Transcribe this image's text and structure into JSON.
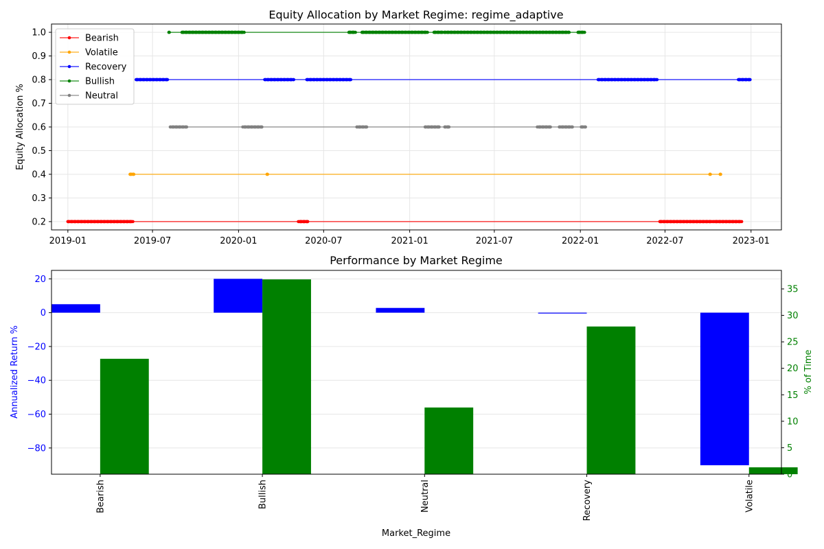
{
  "chart_data": [
    {
      "type": "line",
      "title": "Equity Allocation by Market Regime: regime_adaptive",
      "xlabel": "",
      "ylabel": "Equity Allocation %",
      "ylim": [
        0.165,
        1.035
      ],
      "yticks": [
        0.2,
        0.3,
        0.4,
        0.5,
        0.6,
        0.7,
        0.8,
        0.9,
        1.0
      ],
      "ytick_labels": [
        "0.2",
        "0.3",
        "0.4",
        "0.5",
        "0.6",
        "0.7",
        "0.8",
        "0.9",
        "1.0"
      ],
      "xlim": [
        "2018-11-27",
        "2023-03-07"
      ],
      "xticks": [
        "2019-01-01",
        "2019-07-01",
        "2020-01-01",
        "2020-07-01",
        "2021-01-01",
        "2021-07-01",
        "2022-01-01",
        "2022-07-01",
        "2023-01-01"
      ],
      "xtick_labels": [
        "2019-01",
        "2019-07",
        "2020-01",
        "2020-07",
        "2021-01",
        "2021-07",
        "2022-01",
        "2022-07",
        "2023-01"
      ],
      "grid": true,
      "legend_position": "upper-left",
      "series": [
        {
          "name": "Bearish",
          "color": "#ff0000",
          "allocation": 0.2,
          "segments": [
            [
              "2019-01-01",
              "2019-05-20"
            ],
            [
              "2020-05-08",
              "2020-05-28"
            ],
            [
              "2022-06-20",
              "2022-10-10"
            ],
            [
              "2022-10-13",
              "2022-12-12"
            ]
          ]
        },
        {
          "name": "Volatile",
          "color": "#ffa500",
          "allocation": 0.4,
          "segments": [
            [
              "2019-05-14",
              "2019-05-22"
            ],
            [
              "2020-03-02",
              "2020-03-02"
            ],
            [
              "2022-10-05",
              "2022-10-05"
            ],
            [
              "2022-10-27",
              "2022-10-27"
            ]
          ]
        },
        {
          "name": "Recovery",
          "color": "#0000ff",
          "allocation": 0.8,
          "segments": [
            [
              "2019-05-27",
              "2019-08-02"
            ],
            [
              "2020-02-26",
              "2020-04-28"
            ],
            [
              "2020-05-26",
              "2020-08-28"
            ],
            [
              "2022-02-08",
              "2022-06-14"
            ],
            [
              "2022-12-05",
              "2023-01-01"
            ]
          ]
        },
        {
          "name": "Bullish",
          "color": "#008000",
          "allocation": 1.0,
          "segments": [
            [
              "2019-08-05",
              "2019-08-05"
            ],
            [
              "2019-09-02",
              "2020-01-13"
            ],
            [
              "2020-08-24",
              "2020-09-07"
            ],
            [
              "2020-09-21",
              "2021-02-08"
            ],
            [
              "2021-02-22",
              "2021-03-12"
            ],
            [
              "2021-03-16",
              "2021-10-22"
            ],
            [
              "2021-10-25",
              "2021-12-08"
            ],
            [
              "2021-12-27",
              "2022-01-10"
            ]
          ]
        },
        {
          "name": "Neutral",
          "color": "#808080",
          "allocation": 0.6,
          "segments": [
            [
              "2019-08-08",
              "2019-09-12"
            ],
            [
              "2020-01-10",
              "2020-02-20"
            ],
            [
              "2020-09-10",
              "2020-10-01"
            ],
            [
              "2021-02-03",
              "2021-03-05"
            ],
            [
              "2021-03-17",
              "2021-03-26"
            ],
            [
              "2021-10-01",
              "2021-10-29"
            ],
            [
              "2021-11-17",
              "2021-12-15"
            ],
            [
              "2022-01-03",
              "2022-01-12"
            ]
          ]
        }
      ]
    },
    {
      "type": "bar",
      "title": "Performance by Market Regime",
      "xlabel": "Market_Regime",
      "categories": [
        "Bearish",
        "Bullish",
        "Neutral",
        "Recovery",
        "Volatile"
      ],
      "ylabel": "Annualized Return %",
      "ylabel_color": "#0000ff",
      "ylim": [
        -95.5,
        25
      ],
      "yticks": [
        -80,
        -60,
        -40,
        -20,
        0,
        20
      ],
      "ytick_labels": [
        "−80",
        "−60",
        "−40",
        "−20",
        "0",
        "20"
      ],
      "y2label": "% of Time",
      "y2label_color": "#008000",
      "y2lim": [
        0,
        38.5
      ],
      "y2ticks": [
        0,
        5,
        10,
        15,
        20,
        25,
        30,
        35
      ],
      "y2tick_labels": [
        "0",
        "5",
        "10",
        "15",
        "20",
        "25",
        "30",
        "35"
      ],
      "grid": true,
      "series": [
        {
          "name": "Annualized Return %",
          "axis": "left",
          "color": "#0000ff",
          "values": [
            5.0,
            20.0,
            2.8,
            -0.5,
            -90.2
          ]
        },
        {
          "name": "% of Time",
          "axis": "right",
          "color": "#008000",
          "values": [
            21.8,
            36.8,
            12.6,
            27.9,
            1.3
          ]
        }
      ]
    }
  ]
}
